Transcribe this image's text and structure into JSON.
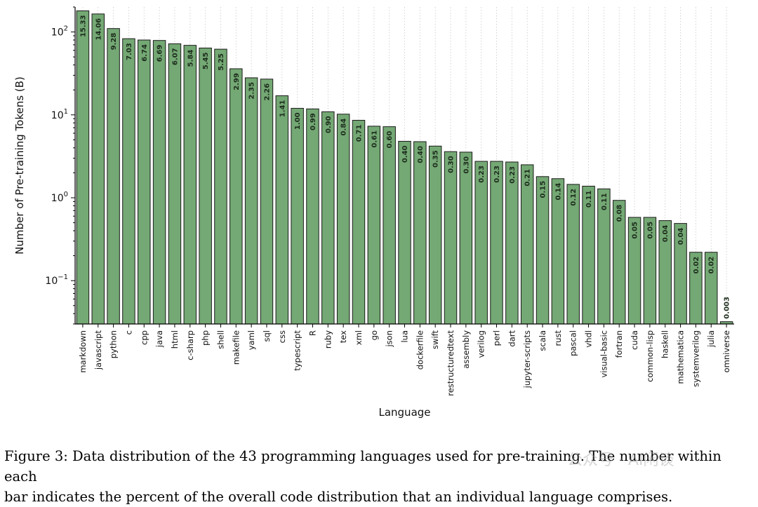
{
  "chart_data": {
    "type": "bar",
    "xlabel": "Language",
    "ylabel": "Number of Pre-training Tokens (B)",
    "yscale": "log",
    "ylim": [
      0.03,
      200
    ],
    "yticks": [
      {
        "value": 0.1,
        "base": "10",
        "exp": "−1"
      },
      {
        "value": 1,
        "base": "10",
        "exp": "0"
      },
      {
        "value": 10,
        "base": "10",
        "exp": "1"
      },
      {
        "value": 100,
        "base": "10",
        "exp": "2"
      }
    ],
    "grid": "x-dotted",
    "bar_color": "#74a874",
    "bar_edge_color": "#1a1a1a",
    "categories": [
      "markdown",
      "javascript",
      "python",
      "c",
      "cpp",
      "java",
      "html",
      "c-sharp",
      "php",
      "shell",
      "makefile",
      "yaml",
      "sql",
      "css",
      "typescript",
      "R",
      "ruby",
      "tex",
      "xml",
      "go",
      "json",
      "lua",
      "dockerfile",
      "swift",
      "restructuredtext",
      "assembly",
      "verilog",
      "perl",
      "dart",
      "jupyter-scripts",
      "scala",
      "rust",
      "pascal",
      "vhdl",
      "visual-basic",
      "fortran",
      "cuda",
      "common-lisp",
      "haskell",
      "mathematica",
      "systemverilog",
      "julia",
      "omniverse"
    ],
    "values": [
      180,
      165,
      110,
      83,
      80,
      79,
      72,
      69,
      64,
      62,
      36,
      28,
      27,
      17,
      12,
      11.8,
      10.9,
      10.2,
      8.6,
      7.3,
      7.2,
      4.8,
      4.75,
      4.2,
      3.6,
      3.55,
      2.75,
      2.75,
      2.7,
      2.5,
      1.8,
      1.7,
      1.45,
      1.38,
      1.28,
      0.93,
      0.58,
      0.58,
      0.53,
      0.49,
      0.22,
      0.22,
      0.032
    ],
    "percent_labels": [
      "15.33",
      "14.06",
      "9.28",
      "7.03",
      "6.74",
      "6.69",
      "6.07",
      "5.84",
      "5.45",
      "5.25",
      "2.99",
      "2.35",
      "2.26",
      "1.41",
      "1.00",
      "0.99",
      "0.90",
      "0.84",
      "0.71",
      "0.61",
      "0.60",
      "0.40",
      "0.40",
      "0.35",
      "0.30",
      "0.30",
      "0.23",
      "0.23",
      "0.23",
      "0.21",
      "0.15",
      "0.14",
      "0.12",
      "0.11",
      "0.11",
      "0.08",
      "0.05",
      "0.05",
      "0.04",
      "0.04",
      "0.02",
      "0.02",
      "0.003"
    ]
  },
  "caption": {
    "line1": "Figure 3: Data distribution of the 43 programming languages used for pre-training. The number within each",
    "line2": "bar indicates the percent of the overall code distribution that an individual language comprises."
  },
  "watermark": "公众号 · AI闲谈"
}
